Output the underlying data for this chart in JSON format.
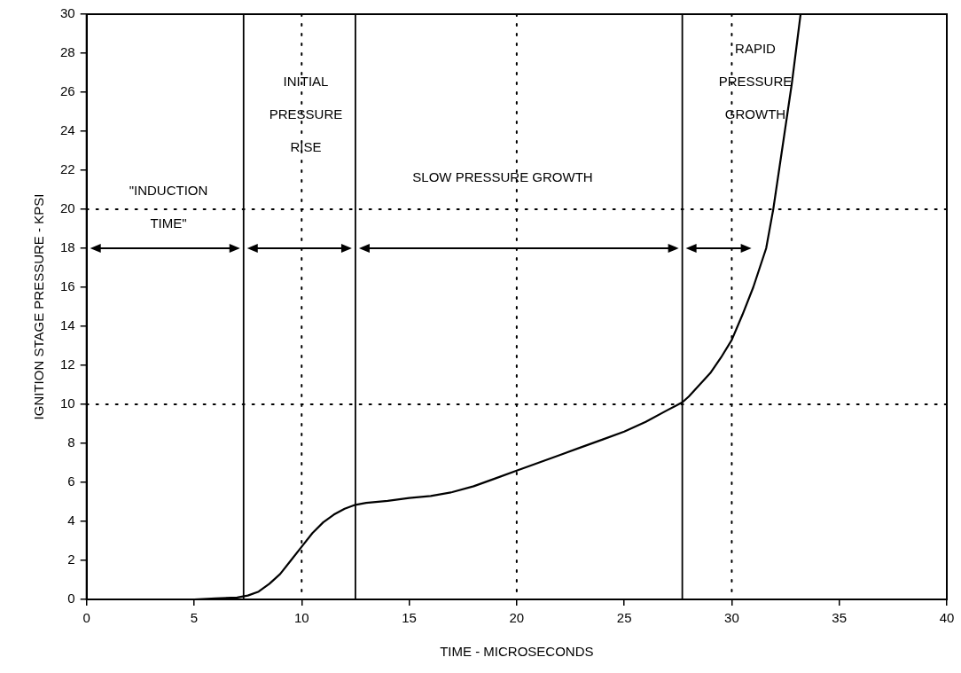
{
  "chart_data": {
    "type": "line",
    "xlabel": "TIME - MICROSECONDS",
    "ylabel": "IGNITION STAGE PRESSURE - KPSI",
    "xlim": [
      0,
      40
    ],
    "xticks": [
      0,
      5,
      10,
      15,
      20,
      25,
      30,
      35,
      40
    ],
    "ylim": [
      0,
      30
    ],
    "yticks": [
      0,
      2,
      4,
      6,
      8,
      10,
      12,
      14,
      16,
      18,
      20,
      22,
      24,
      26,
      28,
      30
    ],
    "grid": false,
    "legend": false,
    "marker": "none",
    "line_style": "solid",
    "series": [
      {
        "color": "#000000",
        "x": [
          5,
          6,
          7,
          7.5,
          8,
          8.5,
          9,
          9.5,
          10,
          10.5,
          11,
          11.5,
          12,
          12.5,
          13,
          14,
          15,
          16,
          17,
          18,
          19,
          20,
          21,
          22,
          23,
          24,
          25,
          26,
          27,
          27.7,
          28,
          28.5,
          29,
          29.5,
          30,
          30.5,
          31,
          31.3,
          31.6,
          31.93,
          32.4,
          32.8,
          33.2
        ],
        "values": [
          0,
          0.05,
          0.1,
          0.2,
          0.4,
          0.8,
          1.3,
          2,
          2.7,
          3.4,
          3.95,
          4.35,
          4.65,
          4.85,
          4.95,
          5.05,
          5.2,
          5.3,
          5.5,
          5.8,
          6.2,
          6.6,
          7,
          7.4,
          7.8,
          8.2,
          8.6,
          9.1,
          9.7,
          10.1,
          10.4,
          11,
          11.6,
          12.4,
          13.3,
          14.6,
          16,
          17,
          18,
          20,
          23.5,
          26.5,
          30
        ]
      }
    ],
    "ref_lines": [
      {
        "axis": "x",
        "value": 10,
        "color": "#000000",
        "line_style": "dotted"
      },
      {
        "axis": "x",
        "value": 20,
        "color": "#000000",
        "line_style": "dotted"
      },
      {
        "axis": "x",
        "value": 30,
        "color": "#000000",
        "line_style": "dotted"
      },
      {
        "axis": "y",
        "value": 10,
        "color": "#000000",
        "line_style": "dotted"
      },
      {
        "axis": "y",
        "value": 20,
        "color": "#000000",
        "line_style": "dotted"
      },
      {
        "axis": "x",
        "value": 7.3,
        "color": "#000000",
        "line_style": "solid"
      },
      {
        "axis": "x",
        "value": 12.5,
        "color": "#000000",
        "line_style": "solid"
      },
      {
        "axis": "x",
        "value": 27.7,
        "color": "#000000",
        "line_style": "solid"
      }
    ],
    "annotations": [
      "\"INDUCTION TIME\"",
      "INITIAL PRESSURE RISE",
      "SLOW PRESSURE GROWTH",
      "RAPID PRESSURE GROWTH"
    ]
  }
}
